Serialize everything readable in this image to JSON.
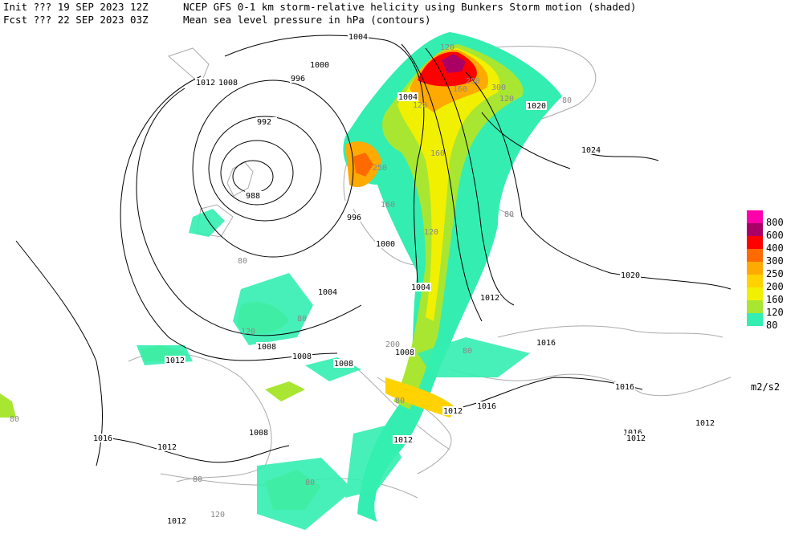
{
  "header": {
    "init": "Init  ??? 19 SEP 2023 12Z",
    "fcst": "Fcst ??? 22 SEP 2023 03Z",
    "title1": "NCEP GFS 0-1 km storm-relative helicity using Bunkers Storm motion (shaded)",
    "title2": "Mean sea level pressure in hPa (contours)"
  },
  "legend": {
    "levels": [
      {
        "label": "80",
        "color": "#33eeb0"
      },
      {
        "label": "120",
        "color": "#a8e632"
      },
      {
        "label": "160",
        "color": "#f0f000"
      },
      {
        "label": "200",
        "color": "#ffd200"
      },
      {
        "label": "250",
        "color": "#ffaa00"
      },
      {
        "label": "300",
        "color": "#ff6a00"
      },
      {
        "label": "400",
        "color": "#ff0000"
      },
      {
        "label": "600",
        "color": "#aa0066"
      },
      {
        "label": "800",
        "color": "#ff00aa"
      }
    ],
    "units": "m2/s2"
  },
  "isobar_labels": [
    "1004",
    "1012",
    "1008",
    "1000",
    "996",
    "992",
    "988",
    "996",
    "1000",
    "1004",
    "1020",
    "1024",
    "1020",
    "1004",
    "1004",
    "1012",
    "1008",
    "1008",
    "1008",
    "1008",
    "1012",
    "1016",
    "1016",
    "1016",
    "1012",
    "1012",
    "1016",
    "1012",
    "1012",
    "1008",
    "1016",
    "1012",
    "1012"
  ],
  "helicity_labels": [
    "120",
    "250",
    "160",
    "300",
    "250",
    "160",
    "120",
    "80",
    "160",
    "120",
    "120",
    "80",
    "200",
    "80",
    "120",
    "80",
    "80",
    "80",
    "120",
    "80",
    "80",
    "80"
  ]
}
